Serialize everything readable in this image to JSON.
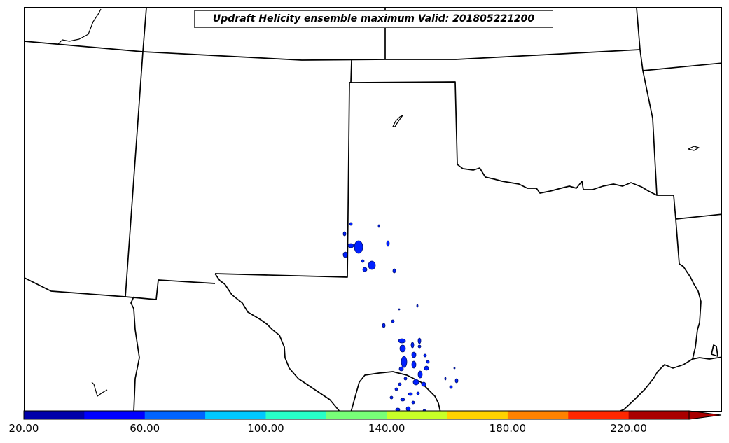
{
  "title": "Updraft Helicity ensemble maximum Valid: 201805221200",
  "map": {
    "boundary_color": "#000000",
    "region": [
      "Texas",
      "Oklahoma",
      "New Mexico",
      "Kansas",
      "Colorado",
      "Arkansas",
      "Louisiana"
    ],
    "field_fill_color": "#0020ff",
    "field_edge_color": "#001070"
  },
  "colorbar": {
    "colors": [
      "#0000aa",
      "#0000ff",
      "#0064ff",
      "#00c8ff",
      "#28ffc8",
      "#78ff78",
      "#c8ff28",
      "#ffd200",
      "#ff8200",
      "#ff2800",
      "#aa0000"
    ],
    "extend": "max",
    "tick_labels": [
      "20.00",
      "60.00",
      "100.00",
      "140.00",
      "180.00",
      "220.00"
    ]
  }
}
